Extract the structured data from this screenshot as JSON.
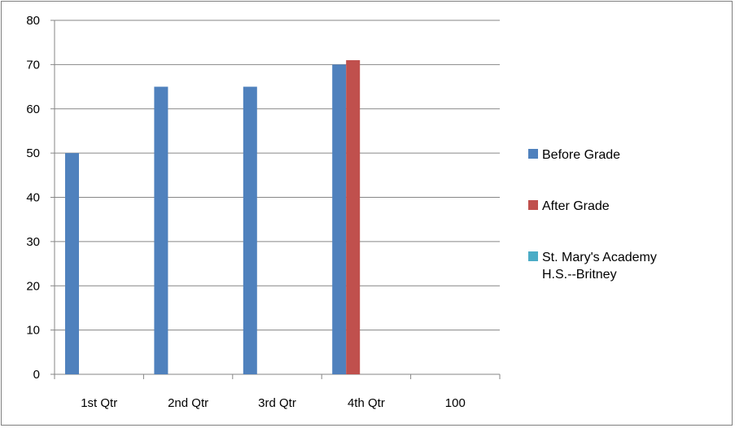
{
  "chart_data": {
    "type": "bar",
    "categories": [
      "1st Qtr",
      "2nd Qtr",
      "3rd Qtr",
      "4th Qtr",
      "100"
    ],
    "series": [
      {
        "name": "Before Grade",
        "color": "#4f81bd",
        "values": [
          50,
          65,
          65,
          70,
          null
        ]
      },
      {
        "name": "After Grade",
        "color": "#c0504d",
        "values": [
          null,
          null,
          null,
          71,
          null
        ]
      },
      {
        "name": "St. Mary's Academy H.S.--Britney",
        "color": "#4bacc6",
        "values": [
          null,
          null,
          null,
          null,
          null
        ]
      }
    ],
    "ylim": [
      0,
      80
    ],
    "yticks": [
      0,
      10,
      20,
      30,
      40,
      50,
      60,
      70,
      80
    ],
    "grid": true,
    "legend_position": "right"
  }
}
